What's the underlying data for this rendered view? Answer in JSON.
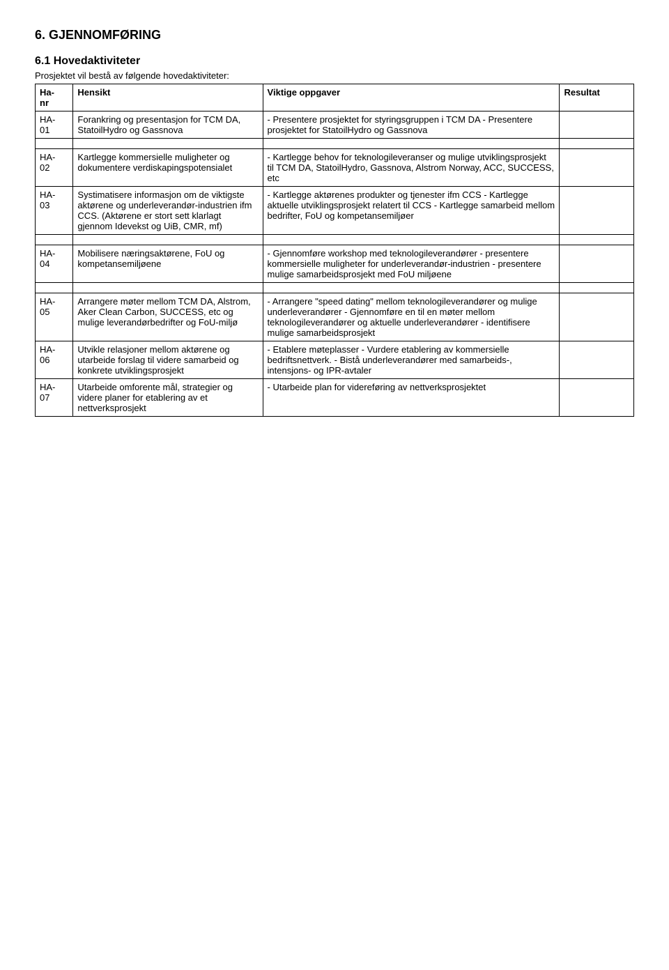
{
  "headings": {
    "h1": "6.  GJENNOMFØRING",
    "h2": "6.1 Hovedaktiviteter",
    "intro": "Prosjektet vil bestå av følgende hovedaktiviteter:"
  },
  "table": {
    "headers": {
      "c1a": "Ha-",
      "c1b": "nr",
      "c2": "Hensikt",
      "c3": "Viktige oppgaver",
      "c4": "Resultat"
    },
    "rows": [
      {
        "id_a": "HA-",
        "id_b": "01",
        "hensikt": "Forankring og presentasjon for TCM DA, StatoilHydro og Gassnova",
        "oppgaver": "- Presentere prosjektet for styringsgruppen i TCM DA\n- Presentere prosjektet for StatoilHydro og Gassnova",
        "resultat": ""
      },
      {
        "id_a": "HA-",
        "id_b": "02",
        "hensikt": "Kartlegge kommersielle muligheter og dokumentere verdiskapingspotensialet",
        "oppgaver": "- Kartlegge behov for teknologileveranser og mulige utviklingsprosjekt til TCM DA, StatoilHydro, Gassnova, Alstrom Norway, ACC, SUCCESS, etc",
        "resultat": ""
      },
      {
        "id_a": "HA-",
        "id_b": "03",
        "hensikt": "Systimatisere informasjon om de viktigste aktørene og underleverandør-industrien ifm CCS. (Aktørene er stort sett klarlagt gjennom Idevekst og UiB, CMR, mf)",
        "oppgaver": "- Kartlegge aktørenes produkter og tjenester ifm CCS\n- Kartlegge aktuelle utviklingsprosjekt relatert til CCS\n- Kartlegge samarbeid mellom bedrifter, FoU og kompetansemiljøer",
        "resultat": ""
      },
      {
        "id_a": "HA-",
        "id_b": "04",
        "hensikt": "Mobilisere næringsaktørene, FoU og kompetansemiljøene",
        "oppgaver": "- Gjennomføre workshop med teknologileverandører\n- presentere kommersielle muligheter for underleverandør-industrien\n- presentere mulige samarbeidsprosjekt med FoU miljøene",
        "resultat": ""
      },
      {
        "id_a": "HA-",
        "id_b": "05",
        "hensikt": "Arrangere møter mellom TCM DA, Alstrom, Aker Clean Carbon, SUCCESS, etc og mulige leverandørbedrifter og FoU-miljø",
        "oppgaver": "- Arrangere \"speed dating\" mellom teknologileverandører og mulige underleverandører\n- Gjennomføre en til en møter mellom teknologileverandører og aktuelle underleverandører\n- identifisere mulige samarbeidsprosjekt",
        "resultat": ""
      },
      {
        "id_a": "HA-",
        "id_b": "06",
        "hensikt": "Utvikle relasjoner mellom aktørene og utarbeide forslag til videre samarbeid og konkrete utviklingsprosjekt",
        "oppgaver": "- Etablere møteplasser\n- Vurdere etablering av kommersielle bedriftsnettverk.\n- Bistå underleverandører med samarbeids-, intensjons- og IPR-avtaler",
        "resultat": ""
      },
      {
        "id_a": "HA-",
        "id_b": "07",
        "hensikt": "Utarbeide omforente mål, strategier og videre planer for etablering av et nettverksprosjekt",
        "oppgaver": "- Utarbeide plan for videreføring av nettverksprosjektet",
        "resultat": ""
      }
    ]
  }
}
